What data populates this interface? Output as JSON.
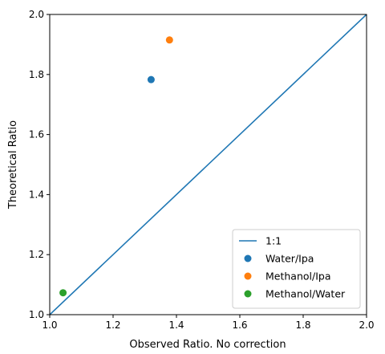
{
  "chart_data": {
    "type": "scatter",
    "title": "",
    "xlabel": "Observed Ratio. No correction",
    "ylabel": "Theoretical Ratio",
    "xlim": [
      1.0,
      2.0
    ],
    "ylim": [
      1.0,
      2.0
    ],
    "x_ticks": [
      "1.0",
      "1.2",
      "1.4",
      "1.6",
      "1.8",
      "2.0"
    ],
    "y_ticks": [
      "1.0",
      "1.2",
      "1.4",
      "1.6",
      "1.8",
      "2.0"
    ],
    "grid": false,
    "legend_position": "lower-right",
    "reference_line": {
      "name": "1:1",
      "points": [
        [
          1.0,
          1.0
        ],
        [
          2.0,
          2.0
        ]
      ],
      "color": "#1f77b4"
    },
    "series": [
      {
        "name": "Water/Ipa",
        "color": "#1f77b4",
        "points": [
          [
            1.32,
            1.783
          ]
        ]
      },
      {
        "name": "Methanol/Ipa",
        "color": "#ff7f0e",
        "points": [
          [
            1.378,
            1.915
          ]
        ]
      },
      {
        "name": "Methanol/Water",
        "color": "#2ca02c",
        "points": [
          [
            1.042,
            1.073
          ]
        ]
      }
    ]
  }
}
